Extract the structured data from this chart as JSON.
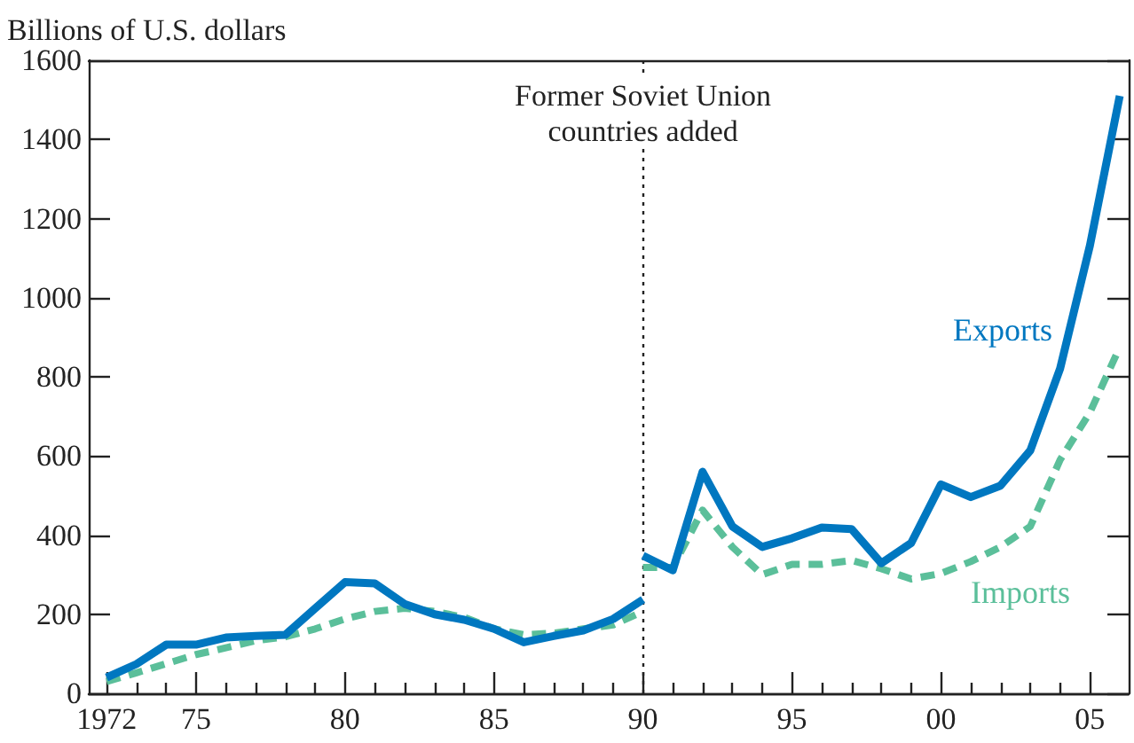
{
  "chart_data": {
    "type": "line",
    "ylabel": "Billions of U.S. dollars",
    "xlim": [
      1971.4,
      2006.3
    ],
    "xticks": [
      {
        "value": 1972,
        "label": "1972"
      },
      {
        "value": 1973,
        "label": null
      },
      {
        "value": 1974,
        "label": null
      },
      {
        "value": 1975,
        "label": "75"
      },
      {
        "value": 1976,
        "label": null
      },
      {
        "value": 1977,
        "label": null
      },
      {
        "value": 1978,
        "label": null
      },
      {
        "value": 1979,
        "label": null
      },
      {
        "value": 1980,
        "label": "80"
      },
      {
        "value": 1981,
        "label": null
      },
      {
        "value": 1982,
        "label": null
      },
      {
        "value": 1983,
        "label": null
      },
      {
        "value": 1984,
        "label": null
      },
      {
        "value": 1985,
        "label": "85"
      },
      {
        "value": 1986,
        "label": null
      },
      {
        "value": 1987,
        "label": null
      },
      {
        "value": 1988,
        "label": null
      },
      {
        "value": 1989,
        "label": null
      },
      {
        "value": 1990,
        "label": "90"
      },
      {
        "value": 1991,
        "label": null
      },
      {
        "value": 1992,
        "label": null
      },
      {
        "value": 1993,
        "label": null
      },
      {
        "value": 1994,
        "label": null
      },
      {
        "value": 1995,
        "label": "95"
      },
      {
        "value": 1996,
        "label": null
      },
      {
        "value": 1997,
        "label": null
      },
      {
        "value": 1998,
        "label": null
      },
      {
        "value": 1999,
        "label": null
      },
      {
        "value": 2000,
        "label": "00"
      },
      {
        "value": 2001,
        "label": null
      },
      {
        "value": 2002,
        "label": null
      },
      {
        "value": 2003,
        "label": null
      },
      {
        "value": 2004,
        "label": null
      },
      {
        "value": 2005,
        "label": "05"
      }
    ],
    "ylim": [
      0,
      1600
    ],
    "yticks": [
      0,
      200,
      400,
      600,
      800,
      1000,
      1200,
      1400,
      1600
    ],
    "x": [
      1972,
      1973,
      1974,
      1975,
      1976,
      1977,
      1978,
      1979,
      1980,
      1981,
      1982,
      1983,
      1984,
      1985,
      1986,
      1987,
      1988,
      1989,
      1990,
      null,
      1990,
      1991,
      1992,
      1993,
      1994,
      1995,
      1996,
      1997,
      1998,
      1999,
      2000,
      2001,
      2002,
      2003,
      2004,
      2005,
      2006
    ],
    "series": [
      {
        "name": "Exports",
        "color": "#0077c0",
        "line_style": "solid",
        "values": [
          40,
          74,
          123,
          123,
          141,
          145,
          148,
          215,
          281,
          278,
          226,
          200,
          186,
          163,
          129,
          145,
          159,
          188,
          237,
          null,
          348,
          311,
          560,
          422,
          370,
          392,
          419,
          415,
          329,
          380,
          528,
          496,
          525,
          614,
          821,
          1132,
          1510
        ]
      },
      {
        "name": "Imports",
        "color": "#5bbf9a",
        "line_style": "dashed",
        "values": [
          30,
          52,
          75,
          98,
          115,
          133,
          143,
          163,
          188,
          207,
          215,
          207,
          192,
          163,
          148,
          152,
          163,
          173,
          207,
          null,
          318,
          318,
          463,
          370,
          300,
          326,
          326,
          336,
          315,
          289,
          303,
          333,
          370,
          422,
          590,
          710,
          875
        ]
      }
    ],
    "ref_lines": [
      {
        "axis": "x",
        "value": 1990,
        "label": "Former Soviet Union\ncountries added",
        "color": "#222222",
        "line_style": "dotted"
      }
    ],
    "marker": "none",
    "grid": false
  }
}
